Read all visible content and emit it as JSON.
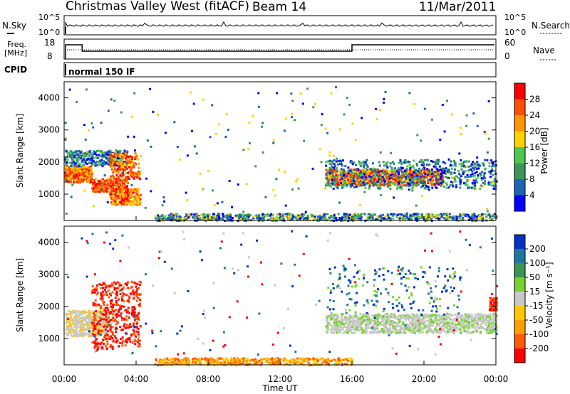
{
  "header": {
    "station": "Christmas Valley West (fitACF)",
    "beam": "Beam 14",
    "date": "11/Mar/2011"
  },
  "noise_panel": {
    "left_label": "N.Sky",
    "right_label": "N.Search",
    "left_ticks": [
      "10^5",
      "10^0"
    ],
    "right_ticks": [
      "10^5",
      "10^0"
    ]
  },
  "freq_panel": {
    "left_label_1": "Freq.",
    "left_label_2": "[MHz]",
    "right_label": "Nave",
    "left_ticks": [
      "18",
      "8"
    ],
    "right_ticks": [
      "60",
      "0"
    ]
  },
  "cpid": {
    "label": "CPID",
    "text": "normal 150 IF"
  },
  "colors": {
    "power": [
      "#0000ff",
      "#1e64b4",
      "#3c965a",
      "#50c850",
      "#ffd200",
      "#ff9600",
      "#ff5000",
      "#ff0000"
    ],
    "velocity": [
      "#ff0000",
      "#ff5a00",
      "#ffa000",
      "#ffc800",
      "#c8c8c8",
      "#78d230",
      "#3c9650",
      "#1e78a0",
      "#0032c8"
    ]
  },
  "chart_data": [
    {
      "type": "heatmap",
      "quantity": "Power",
      "ylabel": "Slant Range [km]",
      "ylim": [
        180,
        4500
      ],
      "yticks": [
        "1000",
        "2000",
        "3000",
        "4000"
      ],
      "xlim_hours": [
        0,
        24
      ],
      "colorbar_label": "Power [dB]",
      "colorbar_ticks": [
        "4",
        "8",
        "12",
        "16",
        "20",
        "24",
        "28"
      ]
    },
    {
      "type": "heatmap",
      "quantity": "Velocity",
      "ylabel": "Slant Range [km]",
      "ylim": [
        180,
        4500
      ],
      "yticks": [
        "1000",
        "2000",
        "3000",
        "4000"
      ],
      "xlim_hours": [
        0,
        24
      ],
      "colorbar_label": "Velocity [m s⁻¹]",
      "colorbar_ticks": [
        "200",
        "100",
        "50",
        "15",
        "-15",
        "-50",
        "-100",
        "-200"
      ]
    }
  ],
  "xaxis": {
    "label": "Time UT",
    "ticks": [
      "00:00",
      "04:00",
      "08:00",
      "12:00",
      "16:00",
      "20:00",
      "00:00"
    ]
  }
}
